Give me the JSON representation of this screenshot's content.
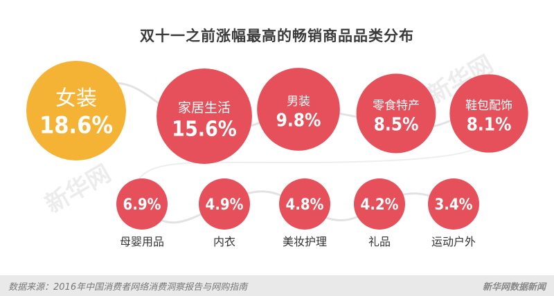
{
  "title": "双十一之前涨幅最高的畅销商品品类分布",
  "watermark": "新华网",
  "footer": {
    "source": "数据来源：2016年中国消费者网络消费洞察报告与网购指南",
    "brand": "新华网数据新闻"
  },
  "colors": {
    "highlight": "#f5b335",
    "bubble": "#e5505a",
    "connector": "#e2e2e2"
  },
  "chart_data": {
    "type": "bubble",
    "title": "双十一之前涨幅最高的畅销商品品类分布",
    "unit": "%",
    "categories": [
      "女装",
      "家居生活",
      "男装",
      "零食特产",
      "鞋包配饰",
      "母婴用品",
      "内衣",
      "美妆护理",
      "礼品",
      "运动户外"
    ],
    "values": [
      18.6,
      15.6,
      9.8,
      8.5,
      8.1,
      6.9,
      4.9,
      4.8,
      4.2,
      3.4
    ],
    "value_labels": [
      "18.6%",
      "15.6%",
      "9.8%",
      "8.5%",
      "8.1%",
      "6.9%",
      "4.9%",
      "4.8%",
      "4.2%",
      "3.4%"
    ]
  }
}
